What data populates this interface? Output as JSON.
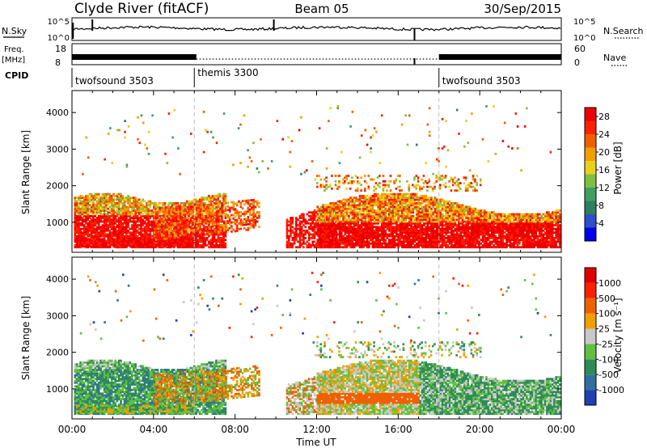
{
  "header": {
    "station": "Clyde River (fitACF)",
    "beam": "Beam 05",
    "date": "30/Sep/2015"
  },
  "panels": {
    "nsky": {
      "label": "N.Sky",
      "right_label": "N.Search",
      "left_ticks": [
        "10^5",
        "10^0"
      ],
      "right_ticks": [
        "10^5",
        "10^0"
      ]
    },
    "freq": {
      "label_line1": "Freq.",
      "label_line2": "[MHz]",
      "right_label": "Nave",
      "left_ticks": [
        "18",
        "8"
      ],
      "right_ticks": [
        "60",
        "0"
      ]
    },
    "cpid": {
      "label": "CPID",
      "segments": [
        {
          "name": "twofsound 3503",
          "start_hour": 0
        },
        {
          "name": "themis 3300",
          "start_hour": 6
        },
        {
          "name": "twofsound 3503",
          "start_hour": 18
        }
      ]
    }
  },
  "chart_data": [
    {
      "type": "heatmap",
      "parameter": "Power",
      "ylabel": "Slant Range [km]",
      "xlim_hours": [
        0,
        24
      ],
      "ylim_km": [
        180,
        4600
      ],
      "yticks": [
        "1000",
        "2000",
        "3000",
        "4000"
      ],
      "colorbar": {
        "label": "Power [dB]",
        "ticks": [
          "4",
          "8",
          "12",
          "16",
          "20",
          "24",
          "28"
        ],
        "range": [
          0,
          30
        ],
        "colors": [
          "#0000ee",
          "#3050c8",
          "#2c8060",
          "#40a060",
          "#80c040",
          "#e8d020",
          "#f0a000",
          "#f06000",
          "#ff2000",
          "#ee0000"
        ]
      }
    },
    {
      "type": "heatmap",
      "parameter": "Velocity",
      "ylabel": "Slant Range [km]",
      "xlabel": "Time UT",
      "xlim_hours": [
        0,
        24
      ],
      "ylim_km": [
        180,
        4600
      ],
      "yticks": [
        "1000",
        "2000",
        "3000",
        "4000"
      ],
      "xticks": [
        "00:00",
        "04:00",
        "08:00",
        "12:00",
        "16:00",
        "20:00",
        "00:00"
      ],
      "colorbar": {
        "label": "Velocity [m s⁻¹]",
        "ticks": [
          "1000",
          "500",
          "100",
          "25",
          "-25",
          "-100",
          "-500",
          "-1000"
        ],
        "colors": [
          "#2040b0",
          "#3070a0",
          "#2e8b57",
          "#60c040",
          "#c8c8c8",
          "#f0a000",
          "#f06000",
          "#ff2000",
          "#e00000"
        ]
      }
    }
  ],
  "colors": {
    "gridline": "#bbbbbb",
    "frame": "#000000"
  }
}
